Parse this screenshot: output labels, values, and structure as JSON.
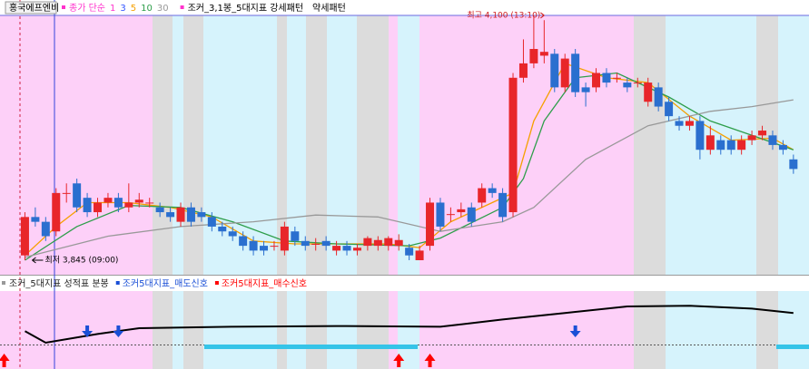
{
  "chart_data": [
    {
      "type": "candlestick",
      "title": "홍국에프엔비",
      "legend_title": "종가 단순",
      "indicators": [
        {
          "name": "조커_3,1봉_5대지표 강세패턴",
          "color": "#000000"
        },
        {
          "name": "약세패턴",
          "color": "#000000"
        }
      ],
      "up_color": "#e8262a",
      "down_color": "#2a6fcf",
      "xlim": [
        -2.4,
        75.5
      ],
      "ylim": [
        3828,
        4116
      ],
      "open": [
        3850,
        3890,
        3885,
        3875,
        3915,
        3925,
        3910,
        3895,
        3905,
        3910,
        3900,
        3905,
        3905,
        3900,
        3895,
        3885,
        3900,
        3895,
        3890,
        3880,
        3875,
        3870,
        3865,
        3860,
        3860,
        3855,
        3875,
        3865,
        3862,
        3865,
        3855,
        3860,
        3855,
        3860,
        3860,
        3860,
        3860,
        3858,
        3845,
        3860,
        3905,
        3893,
        3895,
        3900,
        3905,
        3920,
        3915,
        3895,
        4035,
        4050,
        4058,
        4060,
        4025,
        4060,
        4025,
        4025,
        4040,
        4035,
        4030,
        4030,
        4010,
        4025,
        4010,
        3990,
        3985,
        3990,
        3960,
        3970,
        3970,
        3960,
        3970,
        3975,
        3975,
        3965,
        3950
      ],
      "close": [
        3890,
        3885,
        3870,
        3915,
        3915,
        3900,
        3895,
        3905,
        3910,
        3900,
        3905,
        3908,
        3905,
        3895,
        3890,
        3900,
        3885,
        3890,
        3880,
        3875,
        3870,
        3860,
        3855,
        3855,
        3860,
        3880,
        3865,
        3860,
        3862,
        3860,
        3860,
        3855,
        3858,
        3868,
        3866,
        3868,
        3866,
        3850,
        3855,
        3905,
        3880,
        3893,
        3898,
        3885,
        3920,
        3915,
        3890,
        4035,
        4050,
        4065,
        4062,
        4025,
        4055,
        4020,
        4020,
        4040,
        4030,
        4035,
        4025,
        4030,
        4030,
        4005,
        3995,
        3985,
        3990,
        3960,
        3975,
        3960,
        3960,
        3970,
        3975,
        3980,
        3965,
        3960,
        3940
      ],
      "high": [
        3895,
        3900,
        3890,
        3920,
        3925,
        3930,
        3915,
        3910,
        3915,
        3915,
        3925,
        3915,
        3910,
        3905,
        3900,
        3905,
        3905,
        3900,
        3895,
        3885,
        3880,
        3875,
        3870,
        3865,
        3865,
        3885,
        3880,
        3870,
        3868,
        3870,
        3865,
        3865,
        3862,
        3870,
        3870,
        3870,
        3872,
        3862,
        3860,
        3910,
        3910,
        3900,
        3905,
        3905,
        3925,
        3925,
        3920,
        4040,
        4075,
        4100,
        4095,
        4065,
        4060,
        4065,
        4030,
        4045,
        4045,
        4040,
        4035,
        4035,
        4035,
        4030,
        4015,
        3995,
        3995,
        3995,
        3985,
        3975,
        3975,
        3975,
        3980,
        3985,
        3980,
        3970,
        3955
      ],
      "low": [
        3845,
        3880,
        3865,
        3870,
        3905,
        3895,
        3890,
        3890,
        3900,
        3895,
        3895,
        3900,
        3900,
        3890,
        3885,
        3880,
        3880,
        3885,
        3875,
        3870,
        3865,
        3855,
        3850,
        3850,
        3855,
        3850,
        3860,
        3855,
        3855,
        3855,
        3850,
        3850,
        3850,
        3855,
        3855,
        3855,
        3855,
        3845,
        3845,
        3855,
        3875,
        3885,
        3890,
        3880,
        3900,
        3910,
        3885,
        3890,
        4030,
        4045,
        4050,
        4020,
        4020,
        4015,
        4005,
        4020,
        4025,
        4030,
        4020,
        4025,
        4005,
        4000,
        3990,
        3980,
        3980,
        3950,
        3955,
        3955,
        3955,
        3955,
        3965,
        3970,
        3960,
        3955,
        3935
      ],
      "series": [
        {
          "name": "1",
          "color": "#ff33cc"
        },
        {
          "name": "3",
          "color": "#3355ff"
        },
        {
          "name": "5",
          "color": "#f5a000",
          "x": [
            0,
            3,
            6,
            10,
            14,
            18,
            22,
            26,
            30,
            35,
            38,
            41,
            45,
            47,
            49,
            52,
            56,
            60,
            64,
            68,
            72,
            74
          ],
          "values": [
            3850,
            3880,
            3905,
            3905,
            3900,
            3890,
            3865,
            3862,
            3862,
            3862,
            3858,
            3885,
            3905,
            3915,
            3990,
            4050,
            4035,
            4030,
            3995,
            3970,
            3972,
            3960
          ]
        },
        {
          "name": "10",
          "color": "#2e9e4a",
          "x": [
            0,
            5,
            10,
            15,
            20,
            25,
            30,
            37,
            40,
            46,
            48,
            50,
            53,
            57,
            62,
            66,
            70,
            74
          ],
          "values": [
            3845,
            3880,
            3902,
            3900,
            3885,
            3865,
            3862,
            3860,
            3868,
            3900,
            3930,
            3990,
            4035,
            4040,
            4015,
            3990,
            3975,
            3960
          ]
        },
        {
          "name": "30",
          "color": "#999999",
          "x": [
            0,
            8,
            15,
            22,
            28,
            34,
            40,
            46,
            49,
            54,
            60,
            66,
            70,
            74
          ],
          "values": [
            3848,
            3870,
            3880,
            3885,
            3892,
            3890,
            3875,
            3885,
            3900,
            3950,
            3985,
            4000,
            4005,
            4012
          ]
        }
      ],
      "annotations": [
        {
          "text": "최고 4,100 (13:10)",
          "value": 4100,
          "x": 50
        },
        {
          "text": "최저 3,845 (09:00)",
          "value": 3845,
          "x": 0
        }
      ]
    },
    {
      "type": "signal",
      "title": "조커_5대지표 성적표 분봉",
      "xlim": [
        -2.4,
        75.5
      ],
      "ylim": [
        0,
        100
      ],
      "line": {
        "color": "#000000",
        "x": [
          0,
          2,
          7,
          11,
          20,
          30,
          40,
          46,
          52,
          58,
          64,
          70,
          74
        ],
        "values": [
          46,
          30,
          42,
          50,
          52,
          53,
          52,
          62,
          71,
          80,
          81,
          77,
          71
        ]
      },
      "series": [
        {
          "name": "조커5대지표_매도신호",
          "color": "#1a4fd6",
          "x": [
            6,
            9,
            53
          ]
        },
        {
          "name": "조커5대지표_매수신호",
          "color": "#ff0000",
          "x": [
            -2,
            36,
            39
          ]
        }
      ]
    }
  ]
}
